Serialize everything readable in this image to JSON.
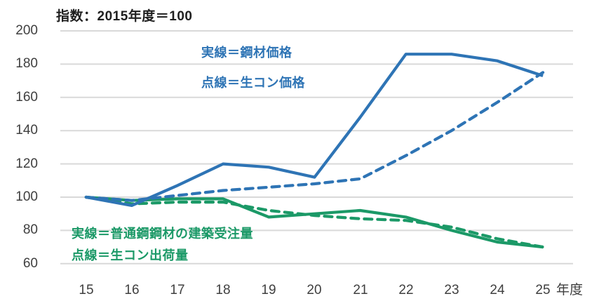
{
  "title": "指数：2015年度＝100",
  "x_axis_unit": "年度",
  "colors": {
    "blue": "#2E74B5",
    "green": "#1B9967",
    "gridline": "#D9D9D9",
    "axis_text": "#3F3F3F",
    "title_text": "#1F1F1F"
  },
  "chart_data": {
    "type": "line",
    "title": "指数：2015年度＝100",
    "xlabel": "年度",
    "ylabel": "",
    "x": [
      "15",
      "16",
      "17",
      "18",
      "19",
      "20",
      "21",
      "22",
      "23",
      "24",
      "25"
    ],
    "ylim": [
      60,
      200
    ],
    "yticks": [
      60,
      80,
      100,
      120,
      140,
      160,
      180,
      200
    ],
    "grid": true,
    "legend_position": "inline-annotations",
    "series": [
      {
        "id": "steel-price",
        "name": "鋼材価格",
        "legend_label": "実線＝鋼材価格",
        "style": "solid",
        "color": "#2E74B5",
        "values": [
          100,
          95,
          107,
          120,
          118,
          112,
          148,
          186,
          186,
          182,
          173
        ]
      },
      {
        "id": "ready-mixed-concrete-price",
        "name": "生コン価格",
        "legend_label": "点線＝生コン価格",
        "style": "dashed",
        "color": "#2E74B5",
        "values": [
          100,
          98,
          101,
          104,
          106,
          108,
          111,
          125,
          140,
          157,
          175
        ]
      },
      {
        "id": "steel-construction-orders",
        "name": "普通鋼鋼材の建築受注量",
        "legend_label": "実線＝普通鋼鋼材の建築受注量",
        "style": "solid",
        "color": "#1B9967",
        "values": [
          100,
          98,
          99,
          99,
          88,
          90,
          92,
          88,
          80,
          73,
          70
        ]
      },
      {
        "id": "ready-mixed-concrete-shipments",
        "name": "生コン出荷量",
        "legend_label": "点線＝生コン出荷量",
        "style": "dashed",
        "color": "#1B9967",
        "values": [
          100,
          96,
          97,
          97,
          92,
          89,
          87,
          86,
          82,
          75,
          70
        ]
      }
    ]
  }
}
